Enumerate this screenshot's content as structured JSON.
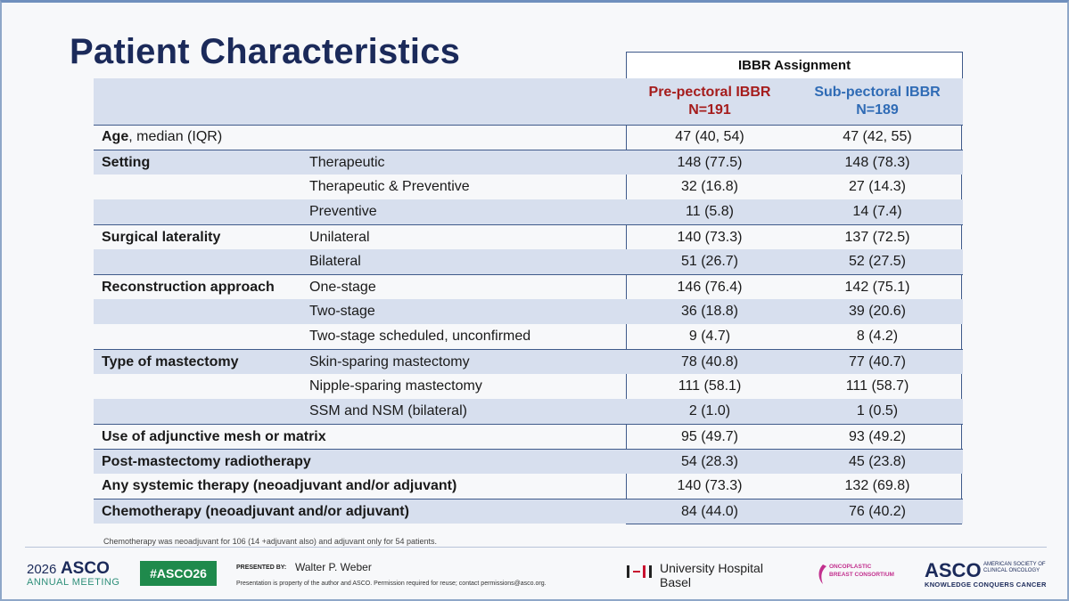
{
  "title": "Patient Characteristics",
  "table": {
    "group_header": "IBBR Assignment",
    "columns": [
      {
        "line1": "Pre-pectoral IBBR",
        "line2": "N=191"
      },
      {
        "line1": "Sub-pectoral IBBR",
        "line2": "N=189"
      }
    ],
    "age_label_bold": "Age",
    "age_label_rest": ", median (IQR)",
    "rows": [
      {
        "label": "",
        "sub": "",
        "pre": "47 (40, 54)",
        "post": "47 (42, 55)"
      },
      {
        "label": "Setting",
        "sub": "Therapeutic",
        "pre": "148 (77.5)",
        "post": "148 (78.3)"
      },
      {
        "label": "",
        "sub": "Therapeutic & Preventive",
        "pre": "32 (16.8)",
        "post": "27 (14.3)"
      },
      {
        "label": "",
        "sub": "Preventive",
        "pre": "11 (5.8)",
        "post": "14 (7.4)"
      },
      {
        "label": "Surgical laterality",
        "sub": "Unilateral",
        "pre": "140 (73.3)",
        "post": "137 (72.5)"
      },
      {
        "label": "",
        "sub": "Bilateral",
        "pre": "51 (26.7)",
        "post": "52 (27.5)"
      },
      {
        "label": "Reconstruction approach",
        "sub": "One-stage",
        "pre": "146 (76.4)",
        "post": "142 (75.1)"
      },
      {
        "label": "",
        "sub": "Two-stage",
        "pre": "36 (18.8)",
        "post": "39 (20.6)"
      },
      {
        "label": "",
        "sub": "Two-stage scheduled, unconfirmed",
        "pre": "9 (4.7)",
        "post": "8 (4.2)"
      },
      {
        "label": "Type of mastectomy",
        "sub": "Skin-sparing mastectomy",
        "pre": "78 (40.8)",
        "post": "77 (40.7)"
      },
      {
        "label": "",
        "sub": "Nipple-sparing mastectomy",
        "pre": "111 (58.1)",
        "post": "111 (58.7)"
      },
      {
        "label": "",
        "sub": "SSM and NSM (bilateral)",
        "pre": "2 (1.0)",
        "post": "1 (0.5)"
      },
      {
        "label": "Use of adjunctive mesh or matrix",
        "sub": "",
        "pre": "95 (49.7)",
        "post": "93 (49.2)"
      },
      {
        "label": "Post-mastectomy radiotherapy",
        "sub": "",
        "pre": "54 (28.3)",
        "post": "45 (23.8)"
      },
      {
        "label": "Any systemic therapy (neoadjuvant and/or adjuvant)",
        "sub": "",
        "pre": "140 (73.3)",
        "post": "132 (69.8)"
      },
      {
        "label": "Chemotherapy (neoadjuvant and/or adjuvant)",
        "sub": "",
        "pre": "84 (44.0)",
        "post": "76 (40.2)"
      }
    ]
  },
  "footnote": "Chemotherapy was neoadjuvant for 106 (14 +adjuvant also) and adjuvant only for 54 patients.",
  "footer": {
    "asco_year": "2026",
    "asco_word": "ASCO",
    "asco_meeting": "ANNUAL MEETING",
    "hashtag": "#ASCO26",
    "presented_by": "PRESENTED BY:",
    "presenter": "Walter P. Weber",
    "disclaimer": "Presentation is property of the author and ASCO. Permission required for reuse; contact permissions@asco.org.",
    "hospital_name": "University Hospital",
    "hospital_city": "Basel",
    "consortium_line1": "ONCOPLASTIC",
    "consortium_line2": "BREAST CONSORTIUM",
    "asco_logo": "ASCO",
    "asco_side_1": "AMERICAN SOCIETY OF",
    "asco_side_2": "CLINICAL ONCOLOGY",
    "asco_tagline": "KNOWLEDGE CONQUERS CANCER"
  },
  "colors": {
    "title": "#1b2a5a",
    "pre_pectoral": "#a51c1c",
    "sub_pectoral": "#2f6bb5",
    "shade": "#d7dfee",
    "rule": "#3f5a8a",
    "hashtag_bg": "#1f8a4c"
  }
}
